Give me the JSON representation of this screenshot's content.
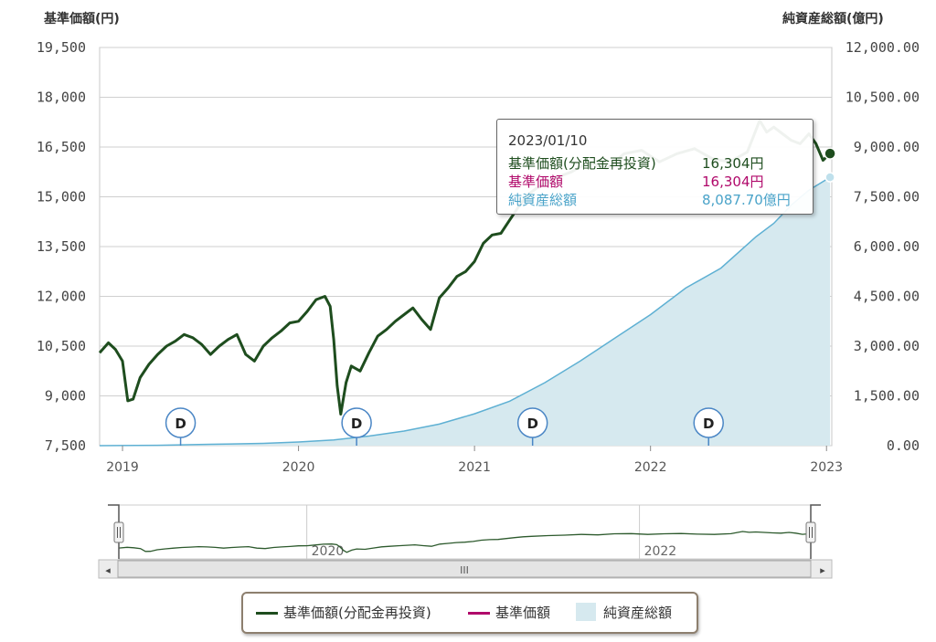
{
  "left_axis_title": "基準価額(円)",
  "right_axis_title": "純資産総額(億円)",
  "tooltip": {
    "date": "2023/01/10",
    "rows": [
      {
        "label": "基準価額(分配金再投資)",
        "value": "16,304円",
        "color": "#1e4d1e"
      },
      {
        "label": "基準価額",
        "value": "16,304円",
        "color": "#b0086a"
      },
      {
        "label": "純資産総額",
        "value": "8,087.70億円",
        "color": "#4aa3c9"
      }
    ]
  },
  "legend": {
    "items": [
      {
        "label": "基準価額(分配金再投資)",
        "color": "#1e4d1e"
      },
      {
        "label": "基準価額",
        "color": "#b0086a"
      },
      {
        "label": "純資産総額",
        "color": "#d6e9ef"
      }
    ]
  },
  "navigator": {
    "labels": [
      "2020",
      "2022"
    ],
    "scroll_thumb": "III",
    "left_arrow": "◂",
    "right_arrow": "▸",
    "handle_glyph": "Ⅱ"
  },
  "chart_data": {
    "type": "line",
    "x_range": [
      "2018-11",
      "2023-01"
    ],
    "x_ticks": [
      "2019",
      "2020",
      "2021",
      "2022",
      "2023"
    ],
    "y_left": {
      "range": [
        7500,
        19500
      ],
      "ticks": [
        "7,500",
        "9,000",
        "10,500",
        "12,000",
        "13,500",
        "15,000",
        "16,500",
        "18,000",
        "19,500"
      ]
    },
    "y_right": {
      "range": [
        0,
        12000
      ],
      "ticks": [
        "0.00",
        "1,500.00",
        "3,000.00",
        "4,500.00",
        "6,000.00",
        "7,500.00",
        "9,000.00",
        "10,500.00",
        "12,000.00"
      ]
    },
    "distribution_marker_label": "D",
    "distribution_dates": [
      2019.33,
      2020.33,
      2021.33,
      2022.33
    ],
    "series": [
      {
        "name": "基準価額(分配金再投資)",
        "axis": "left",
        "color": "#1e4d1e",
        "points": [
          [
            2018.87,
            10300
          ],
          [
            2018.92,
            10600
          ],
          [
            2018.96,
            10400
          ],
          [
            2019.0,
            10050
          ],
          [
            2019.03,
            8850
          ],
          [
            2019.06,
            8900
          ],
          [
            2019.1,
            9550
          ],
          [
            2019.15,
            9950
          ],
          [
            2019.2,
            10250
          ],
          [
            2019.25,
            10500
          ],
          [
            2019.3,
            10650
          ],
          [
            2019.35,
            10850
          ],
          [
            2019.4,
            10750
          ],
          [
            2019.45,
            10550
          ],
          [
            2019.5,
            10250
          ],
          [
            2019.55,
            10500
          ],
          [
            2019.6,
            10700
          ],
          [
            2019.65,
            10850
          ],
          [
            2019.7,
            10250
          ],
          [
            2019.75,
            10050
          ],
          [
            2019.8,
            10500
          ],
          [
            2019.85,
            10750
          ],
          [
            2019.9,
            10950
          ],
          [
            2019.95,
            11200
          ],
          [
            2020.0,
            11250
          ],
          [
            2020.05,
            11550
          ],
          [
            2020.1,
            11900
          ],
          [
            2020.15,
            12000
          ],
          [
            2020.18,
            11700
          ],
          [
            2020.2,
            10700
          ],
          [
            2020.22,
            9300
          ],
          [
            2020.24,
            8450
          ],
          [
            2020.27,
            9400
          ],
          [
            2020.3,
            9900
          ],
          [
            2020.35,
            9750
          ],
          [
            2020.4,
            10300
          ],
          [
            2020.45,
            10800
          ],
          [
            2020.5,
            11000
          ],
          [
            2020.55,
            11250
          ],
          [
            2020.6,
            11450
          ],
          [
            2020.65,
            11650
          ],
          [
            2020.7,
            11300
          ],
          [
            2020.75,
            11000
          ],
          [
            2020.8,
            11950
          ],
          [
            2020.85,
            12250
          ],
          [
            2020.9,
            12600
          ],
          [
            2020.95,
            12750
          ],
          [
            2021.0,
            13050
          ],
          [
            2021.05,
            13600
          ],
          [
            2021.1,
            13850
          ],
          [
            2021.15,
            13900
          ],
          [
            2021.2,
            14300
          ],
          [
            2021.25,
            14700
          ],
          [
            2021.3,
            15050
          ],
          [
            2021.35,
            15250
          ],
          [
            2021.45,
            15550
          ],
          [
            2021.55,
            15750
          ],
          [
            2021.65,
            16050
          ],
          [
            2021.75,
            15850
          ],
          [
            2021.85,
            16300
          ],
          [
            2021.95,
            16400
          ],
          [
            2022.05,
            16050
          ],
          [
            2022.15,
            16300
          ],
          [
            2022.25,
            16450
          ],
          [
            2022.35,
            16150
          ],
          [
            2022.45,
            16050
          ],
          [
            2022.55,
            16350
          ],
          [
            2022.62,
            17300
          ],
          [
            2022.66,
            16950
          ],
          [
            2022.7,
            17100
          ],
          [
            2022.75,
            16900
          ],
          [
            2022.8,
            16700
          ],
          [
            2022.85,
            16600
          ],
          [
            2022.9,
            16900
          ],
          [
            2022.94,
            16600
          ],
          [
            2022.98,
            16100
          ],
          [
            2023.02,
            16304
          ]
        ]
      },
      {
        "name": "基準価額",
        "axis": "left",
        "color": "#b0086a",
        "points": []
      },
      {
        "name": "純資産総額",
        "axis": "right",
        "color": "#5eb0d3",
        "fill": "#d6e9ef",
        "points": [
          [
            2018.87,
            0
          ],
          [
            2019.2,
            10
          ],
          [
            2019.5,
            40
          ],
          [
            2019.8,
            70
          ],
          [
            2020.0,
            110
          ],
          [
            2020.2,
            170
          ],
          [
            2020.4,
            290
          ],
          [
            2020.6,
            440
          ],
          [
            2020.8,
            650
          ],
          [
            2021.0,
            960
          ],
          [
            2021.2,
            1340
          ],
          [
            2021.4,
            1900
          ],
          [
            2021.6,
            2550
          ],
          [
            2021.8,
            3250
          ],
          [
            2022.0,
            3950
          ],
          [
            2022.2,
            4750
          ],
          [
            2022.4,
            5350
          ],
          [
            2022.6,
            6300
          ],
          [
            2022.7,
            6700
          ],
          [
            2022.8,
            7250
          ],
          [
            2022.9,
            7700
          ],
          [
            2023.02,
            8087.7
          ]
        ]
      }
    ],
    "tooltip_x": 2023.02
  }
}
